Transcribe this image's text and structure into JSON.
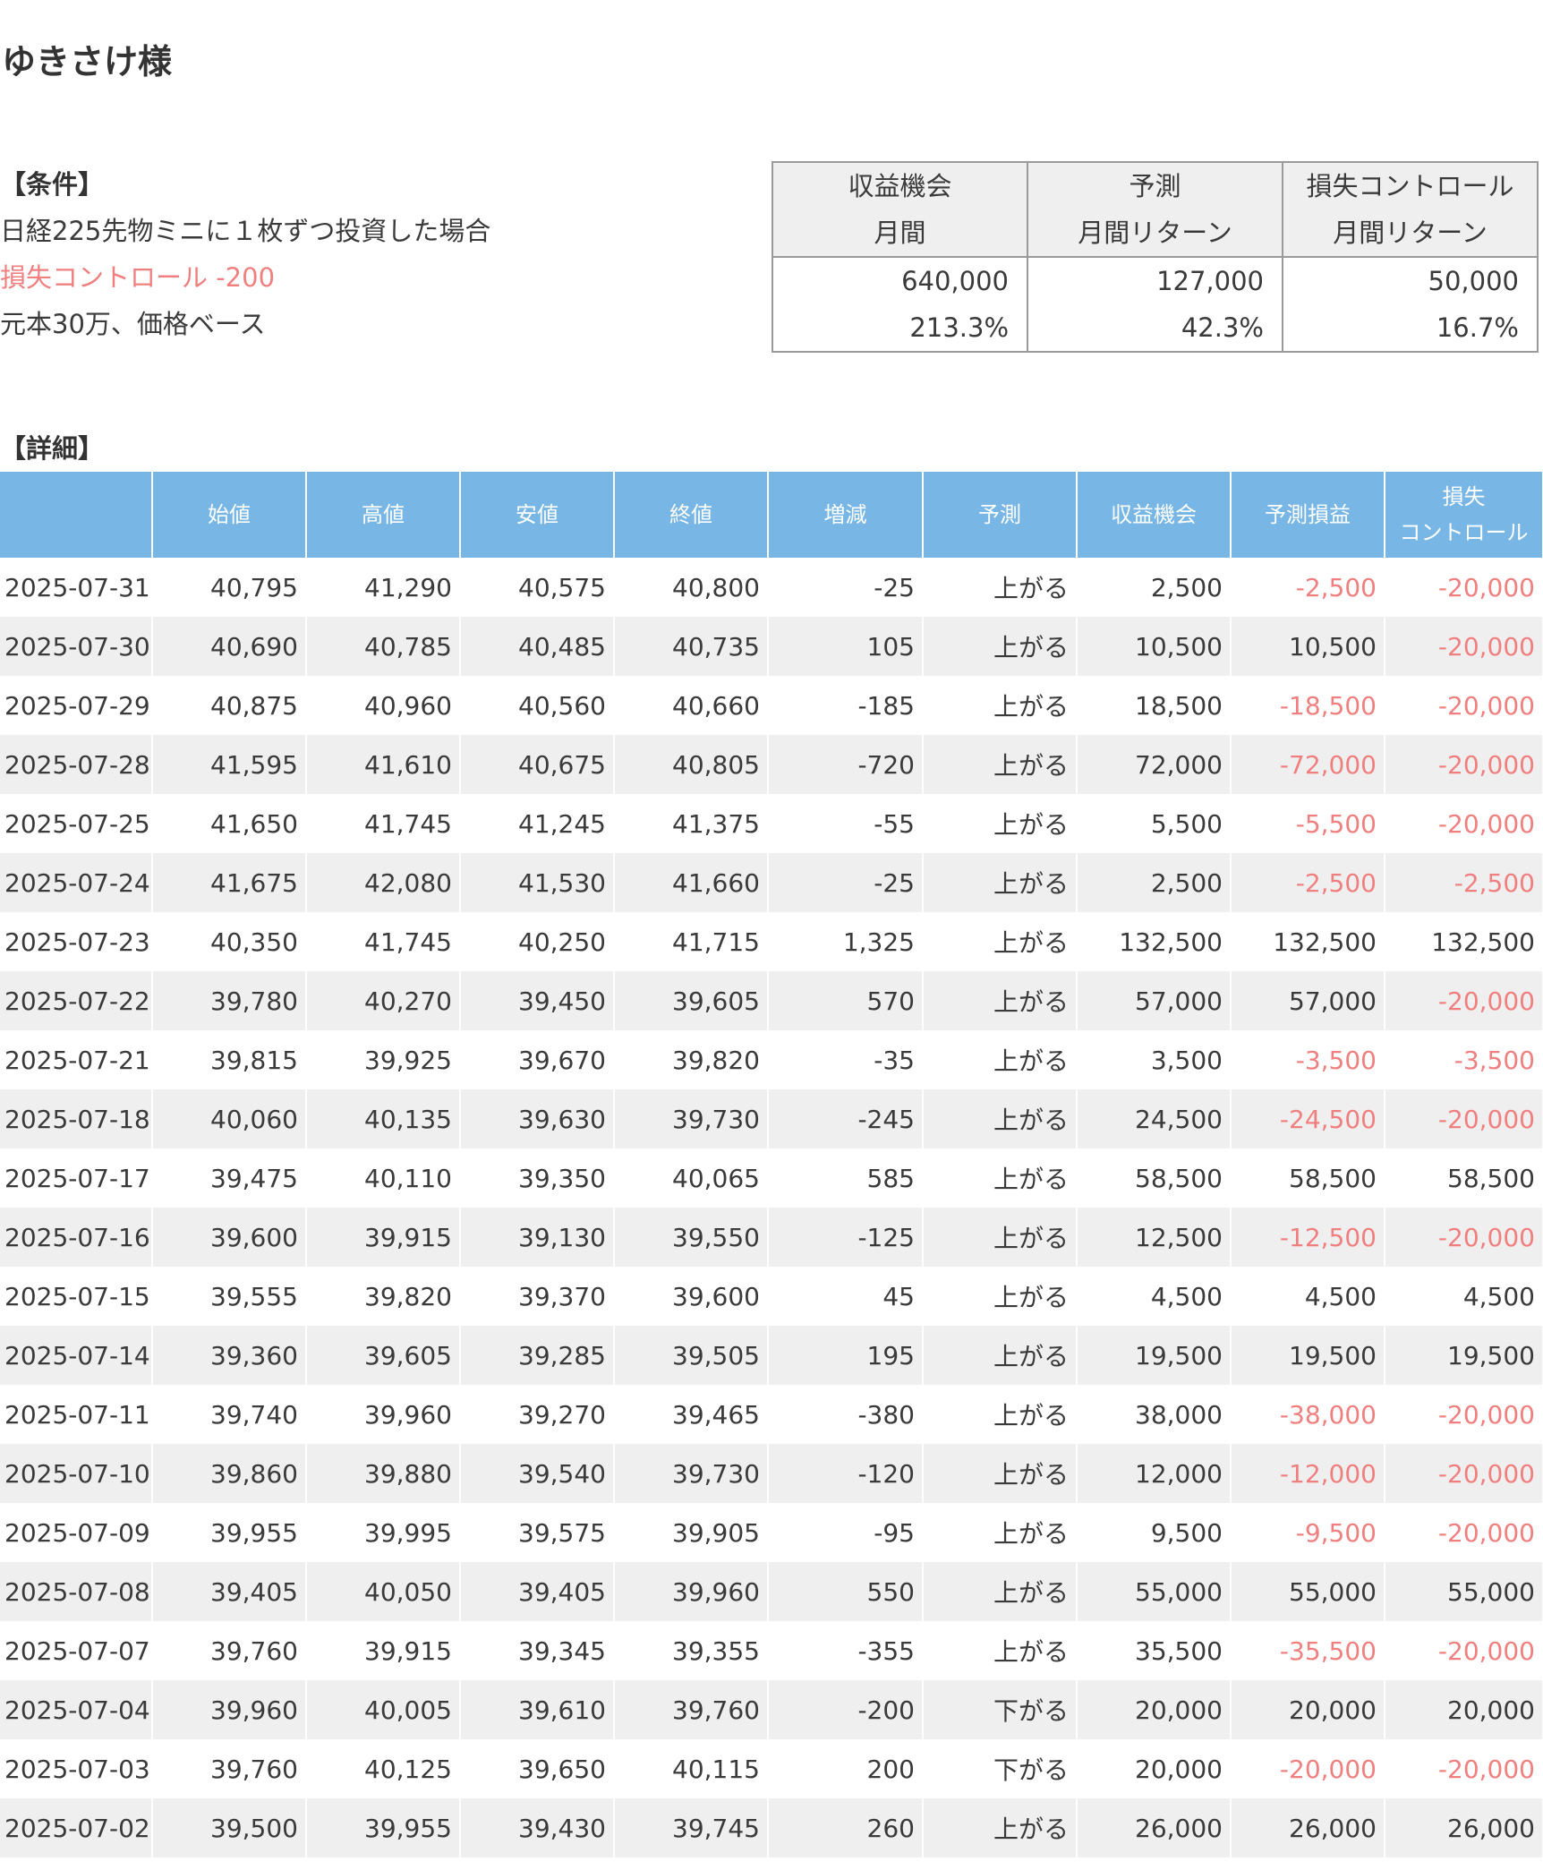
{
  "title": "ゆきさけ様",
  "conditions": {
    "heading": "【条件】",
    "line1": "日経225先物ミニに１枚ずつ投資した場合",
    "line2": "損失コントロール -200",
    "line3": "元本30万、価格ベース"
  },
  "summary": {
    "headers": [
      [
        "収益機会",
        "月間"
      ],
      [
        "予測",
        "月間リターン"
      ],
      [
        "損失コントロール",
        "月間リターン"
      ]
    ],
    "amounts": [
      "640,000",
      "127,000",
      "50,000"
    ],
    "percents": [
      "213.3%",
      "42.3%",
      "16.7%"
    ]
  },
  "detail": {
    "heading": "【詳細】",
    "columns": [
      "",
      "始値",
      "高値",
      "安値",
      "終値",
      "増減",
      "予測",
      "収益機会",
      "予測損益",
      "損失コントロール"
    ],
    "last_column_lines": [
      "損失",
      "コントロール"
    ],
    "rows": [
      [
        "2025-07-31",
        "40,795",
        "41,290",
        "40,575",
        "40,800",
        "-25",
        "上がる",
        "2,500",
        "-2,500",
        "-20,000"
      ],
      [
        "2025-07-30",
        "40,690",
        "40,785",
        "40,485",
        "40,735",
        "105",
        "上がる",
        "10,500",
        "10,500",
        "-20,000"
      ],
      [
        "2025-07-29",
        "40,875",
        "40,960",
        "40,560",
        "40,660",
        "-185",
        "上がる",
        "18,500",
        "-18,500",
        "-20,000"
      ],
      [
        "2025-07-28",
        "41,595",
        "41,610",
        "40,675",
        "40,805",
        "-720",
        "上がる",
        "72,000",
        "-72,000",
        "-20,000"
      ],
      [
        "2025-07-25",
        "41,650",
        "41,745",
        "41,245",
        "41,375",
        "-55",
        "上がる",
        "5,500",
        "-5,500",
        "-20,000"
      ],
      [
        "2025-07-24",
        "41,675",
        "42,080",
        "41,530",
        "41,660",
        "-25",
        "上がる",
        "2,500",
        "-2,500",
        "-2,500"
      ],
      [
        "2025-07-23",
        "40,350",
        "41,745",
        "40,250",
        "41,715",
        "1,325",
        "上がる",
        "132,500",
        "132,500",
        "132,500"
      ],
      [
        "2025-07-22",
        "39,780",
        "40,270",
        "39,450",
        "39,605",
        "570",
        "上がる",
        "57,000",
        "57,000",
        "-20,000"
      ],
      [
        "2025-07-21",
        "39,815",
        "39,925",
        "39,670",
        "39,820",
        "-35",
        "上がる",
        "3,500",
        "-3,500",
        "-3,500"
      ],
      [
        "2025-07-18",
        "40,060",
        "40,135",
        "39,630",
        "39,730",
        "-245",
        "上がる",
        "24,500",
        "-24,500",
        "-20,000"
      ],
      [
        "2025-07-17",
        "39,475",
        "40,110",
        "39,350",
        "40,065",
        "585",
        "上がる",
        "58,500",
        "58,500",
        "58,500"
      ],
      [
        "2025-07-16",
        "39,600",
        "39,915",
        "39,130",
        "39,550",
        "-125",
        "上がる",
        "12,500",
        "-12,500",
        "-20,000"
      ],
      [
        "2025-07-15",
        "39,555",
        "39,820",
        "39,370",
        "39,600",
        "45",
        "上がる",
        "4,500",
        "4,500",
        "4,500"
      ],
      [
        "2025-07-14",
        "39,360",
        "39,605",
        "39,285",
        "39,505",
        "195",
        "上がる",
        "19,500",
        "19,500",
        "19,500"
      ],
      [
        "2025-07-11",
        "39,740",
        "39,960",
        "39,270",
        "39,465",
        "-380",
        "上がる",
        "38,000",
        "-38,000",
        "-20,000"
      ],
      [
        "2025-07-10",
        "39,860",
        "39,880",
        "39,540",
        "39,730",
        "-120",
        "上がる",
        "12,000",
        "-12,000",
        "-20,000"
      ],
      [
        "2025-07-09",
        "39,955",
        "39,995",
        "39,575",
        "39,905",
        "-95",
        "上がる",
        "9,500",
        "-9,500",
        "-20,000"
      ],
      [
        "2025-07-08",
        "39,405",
        "40,050",
        "39,405",
        "39,960",
        "550",
        "上がる",
        "55,000",
        "55,000",
        "55,000"
      ],
      [
        "2025-07-07",
        "39,760",
        "39,915",
        "39,345",
        "39,355",
        "-355",
        "上がる",
        "35,500",
        "-35,500",
        "-20,000"
      ],
      [
        "2025-07-04",
        "39,960",
        "40,005",
        "39,610",
        "39,760",
        "-200",
        "下がる",
        "20,000",
        "20,000",
        "20,000"
      ],
      [
        "2025-07-03",
        "39,760",
        "40,125",
        "39,650",
        "40,115",
        "200",
        "下がる",
        "20,000",
        "-20,000",
        "-20,000"
      ],
      [
        "2025-07-02",
        "39,500",
        "39,955",
        "39,430",
        "39,745",
        "260",
        "上がる",
        "26,000",
        "26,000",
        "26,000"
      ]
    ]
  },
  "colors": {
    "header_blue": "#78b7e5",
    "negative_red": "#f08080",
    "stripe_gray": "#efefef"
  }
}
